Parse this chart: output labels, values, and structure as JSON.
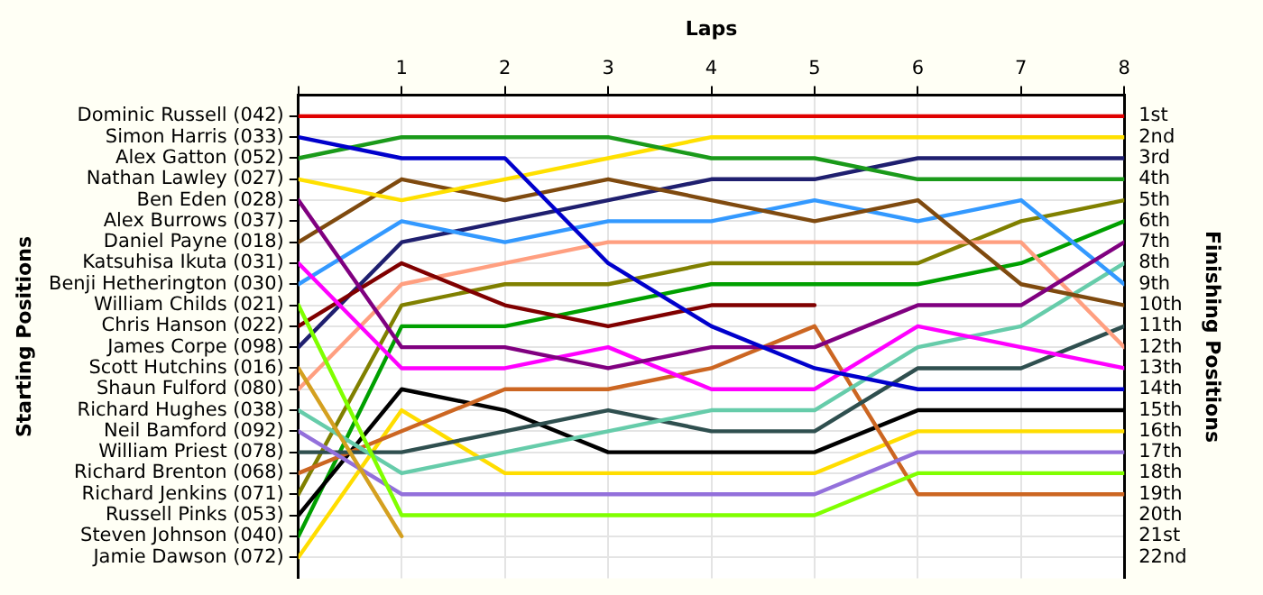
{
  "chart_data": {
    "type": "line",
    "xlabel": "Laps",
    "y2label": "Finishing Positions",
    "annotations": [
      "Starting Positions"
    ],
    "x": [
      0,
      1,
      2,
      3,
      4,
      5,
      6,
      7,
      8
    ],
    "xlim": [
      0,
      8
    ],
    "xticks": [
      {
        "value": 0,
        "label": null
      },
      1,
      2,
      3,
      4,
      5,
      6,
      7,
      8
    ],
    "y_categories": [
      "Dominic Russell (042)",
      "Simon Harris (033)",
      "Alex Gatton (052)",
      "Nathan Lawley (027)",
      "Ben Eden (028)",
      "Alex Burrows (037)",
      "Daniel Payne (018)",
      "Katsuhisa Ikuta (031)",
      "Benji Hetherington (030)",
      "William Childs (021)",
      "Chris Hanson (022)",
      "James Corpe (098)",
      "Scott Hutchins (016)",
      "Shaun Fulford (080)",
      "Richard Hughes (038)",
      "Neil Bamford (092)",
      "William Priest (078)",
      "Richard Brenton (068)",
      "Richard Jenkins (071)",
      "Russell Pinks (053)",
      "Steven Johnson (040)",
      "Jamie Dawson (072)"
    ],
    "y2lim": [
      23,
      0
    ],
    "y2ticks": [
      {
        "value": 1,
        "label": "1st"
      },
      {
        "value": 2,
        "label": "2nd"
      },
      {
        "value": 3,
        "label": "3rd"
      },
      {
        "value": 4,
        "label": "4th"
      },
      {
        "value": 5,
        "label": "5th"
      },
      {
        "value": 6,
        "label": "6th"
      },
      {
        "value": 7,
        "label": "7th"
      },
      {
        "value": 8,
        "label": "8th"
      },
      {
        "value": 9,
        "label": "9th"
      },
      {
        "value": 10,
        "label": "10th"
      },
      {
        "value": 11,
        "label": "11th"
      },
      {
        "value": 12,
        "label": "12th"
      },
      {
        "value": 13,
        "label": "13th"
      },
      {
        "value": 14,
        "label": "14th"
      },
      {
        "value": 15,
        "label": "15th"
      },
      {
        "value": 16,
        "label": "16th"
      },
      {
        "value": 17,
        "label": "17th"
      },
      {
        "value": 18,
        "label": "18th"
      },
      {
        "value": 19,
        "label": "19th"
      },
      {
        "value": 20,
        "label": "20th"
      },
      {
        "value": 21,
        "label": "21st"
      },
      {
        "value": 22,
        "label": "22nd"
      }
    ],
    "grid": true,
    "series": [
      {
        "axis": "y2",
        "color": "#e00000",
        "values": [
          1,
          1,
          1,
          1,
          1,
          1,
          1,
          1,
          1
        ]
      },
      {
        "axis": "y2",
        "color": "#0000cc",
        "values": [
          2,
          3,
          3,
          8,
          11,
          13,
          14,
          14,
          14
        ]
      },
      {
        "axis": "y2",
        "color": "#1a9a1a",
        "values": [
          3,
          2,
          2,
          2,
          3,
          3,
          4,
          4,
          4
        ]
      },
      {
        "axis": "y2",
        "color": "#ffe000",
        "values": [
          4,
          5,
          4,
          3,
          2,
          2,
          2,
          2,
          2
        ]
      },
      {
        "axis": "y2",
        "color": "#800080",
        "values": [
          5,
          12,
          12,
          13,
          12,
          12,
          10,
          10,
          7
        ]
      },
      {
        "axis": "y2",
        "color": "#7f4a0f",
        "values": [
          7,
          4,
          5,
          4,
          5,
          6,
          5,
          9,
          10
        ]
      },
      {
        "axis": "y2",
        "color": "#ff00ff",
        "values": [
          8,
          13,
          13,
          12,
          14,
          14,
          11,
          12,
          13
        ]
      },
      {
        "axis": "y2",
        "color": "#3399ff",
        "values": [
          9,
          6,
          7,
          6,
          6,
          5,
          6,
          5,
          9
        ]
      },
      {
        "axis": "y2",
        "color": "#80ff00",
        "values": [
          10,
          20,
          20,
          20,
          20,
          20,
          18,
          18,
          18
        ]
      },
      {
        "axis": "y2",
        "color": "#800000",
        "values": [
          11,
          8,
          10,
          11,
          10,
          10,
          null,
          null,
          null
        ]
      },
      {
        "axis": "y2",
        "color": "#1f1f6f",
        "values": [
          12,
          7,
          6,
          5,
          4,
          4,
          3,
          3,
          3
        ]
      },
      {
        "axis": "y2",
        "color": "#d4a020",
        "values": [
          13,
          21,
          null,
          null,
          null,
          null,
          null,
          null,
          null
        ]
      },
      {
        "axis": "y2",
        "color": "#ff9f80",
        "values": [
          14,
          9,
          8,
          7,
          7,
          7,
          7,
          7,
          12
        ]
      },
      {
        "axis": "y2",
        "color": "#66ccaa",
        "values": [
          15,
          18,
          17,
          16,
          15,
          15,
          12,
          11,
          8
        ]
      },
      {
        "axis": "y2",
        "color": "#9370db",
        "values": [
          16,
          19,
          19,
          19,
          19,
          19,
          17,
          17,
          17
        ]
      },
      {
        "axis": "y2",
        "color": "#2f4f4f",
        "values": [
          17,
          17,
          16,
          15,
          16,
          16,
          13,
          13,
          11
        ]
      },
      {
        "axis": "y2",
        "color": "#cc6622",
        "values": [
          18,
          16,
          14,
          14,
          13,
          11,
          19,
          19,
          19
        ]
      },
      {
        "axis": "y2",
        "color": "#808000",
        "values": [
          19,
          10,
          9,
          9,
          8,
          8,
          8,
          6,
          5
        ]
      },
      {
        "axis": "y2",
        "color": "#000000",
        "values": [
          20,
          14,
          15,
          17,
          17,
          17,
          15,
          15,
          15
        ]
      },
      {
        "axis": "y2",
        "color": "#00a000",
        "values": [
          21,
          11,
          11,
          10,
          9,
          9,
          9,
          8,
          6
        ]
      },
      {
        "axis": "y2",
        "color": "#ffdd00",
        "values": [
          22,
          15,
          18,
          18,
          18,
          18,
          16,
          16,
          16
        ]
      }
    ]
  }
}
